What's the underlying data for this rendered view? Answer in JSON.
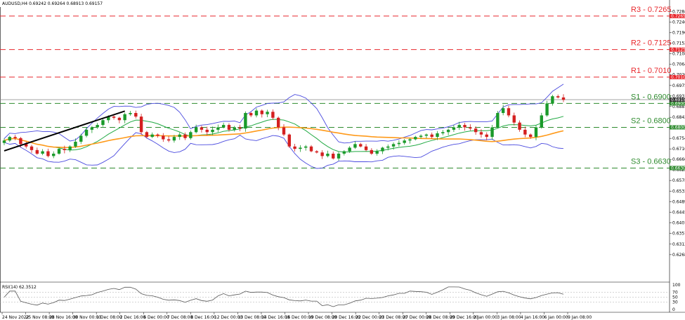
{
  "header": {
    "symbol_ohlc": "AUDUSD,H4  0.69242 0.69264 0.68913 0.69157"
  },
  "rsi_label": "RSI(14) 62.3512",
  "colors": {
    "resistance": "#e8282d",
    "support": "#2e8b2e",
    "bollinger": "#4a4adf",
    "ma_fast": "#22aa44",
    "ma_slow": "#ff9a1a",
    "candle_up": "#1a9a2a",
    "candle_down": "#d42020",
    "trendline": "#000000",
    "rsi_line": "#555555"
  },
  "chart_data": [
    {
      "type": "candlestick",
      "title": "AUDUSD,H4",
      "ylim": [
        0.6165,
        0.7297
      ],
      "y_ticks": [
        "0.72840",
        "0.72400",
        "0.71960",
        "0.71520",
        "0.71080",
        "0.70640",
        "0.70200",
        "0.69750",
        "0.69310",
        "0.68870",
        "0.68420",
        "0.67980",
        "0.67540",
        "0.67100",
        "0.66660",
        "0.66220",
        "0.65780",
        "0.65330",
        "0.64890",
        "0.64450",
        "0.64010",
        "0.63570",
        "0.63120",
        "0.62680"
      ],
      "x_ticks": [
        "24 Nov 2022",
        "25 Nov 08:00",
        "28 Nov 16:00",
        "30 Nov 00:00",
        "1 Dec 08:00",
        "2 Dec 16:00",
        "6 Dec 00:00",
        "7 Dec 08:00",
        "8 Dec 16:00",
        "12 Dec 00:00",
        "13 Dec 08:00",
        "14 Dec 16:00",
        "16 Dec 00:00",
        "19 Dec 08:00",
        "20 Dec 16:00",
        "22 Dec 00:00",
        "23 Dec 08:00",
        "27 Dec 00:00",
        "28 Dec 08:00",
        "29 Dec 16:00",
        "2 Jan 00:00",
        "3 Jan 08:00",
        "4 Jan 16:00",
        "6 Jan 00:00",
        "9 Jan 08:00"
      ],
      "levels": [
        {
          "label": "R3 - 0.7265",
          "value": 0.7265,
          "tag": "0.72650",
          "kind": "resistance"
        },
        {
          "label": "R2 - 0.7125",
          "value": 0.7125,
          "tag": "0.71250",
          "kind": "resistance"
        },
        {
          "label": "R1 - 0.7010",
          "value": 0.701,
          "tag": "0.70100",
          "kind": "resistance"
        },
        {
          "label": "S1 - 0.6900",
          "value": 0.69,
          "tag": "0.69000",
          "kind": "support"
        },
        {
          "label": "S2 - 0.6800",
          "value": 0.68,
          "tag": "0.68000",
          "kind": "support"
        },
        {
          "label": "S3 - 0.6630",
          "value": 0.663,
          "tag": "0.66300",
          "kind": "support"
        }
      ],
      "current_price": {
        "value": 0.69157,
        "tag": "0.69157"
      },
      "close_series": [
        0.6745,
        0.676,
        0.6755,
        0.673,
        0.672,
        0.6705,
        0.669,
        0.67,
        0.668,
        0.669,
        0.671,
        0.6705,
        0.672,
        0.674,
        0.6765,
        0.679,
        0.68,
        0.681,
        0.683,
        0.6845,
        0.684,
        0.683,
        0.6855,
        0.686,
        0.6845,
        0.678,
        0.676,
        0.677,
        0.6765,
        0.675,
        0.6745,
        0.676,
        0.677,
        0.6755,
        0.678,
        0.68,
        0.679,
        0.678,
        0.679,
        0.68,
        0.681,
        0.679,
        0.68,
        0.6795,
        0.686,
        0.685,
        0.687,
        0.6855,
        0.6865,
        0.684,
        0.68,
        0.677,
        0.672,
        0.671,
        0.6715,
        0.672,
        0.67,
        0.6695,
        0.668,
        0.669,
        0.667,
        0.669,
        0.67,
        0.6715,
        0.673,
        0.672,
        0.6705,
        0.669,
        0.67,
        0.6715,
        0.672,
        0.673,
        0.6735,
        0.6745,
        0.675,
        0.676,
        0.6765,
        0.677,
        0.676,
        0.6775,
        0.678,
        0.679,
        0.68,
        0.681,
        0.68,
        0.6795,
        0.678,
        0.677,
        0.676,
        0.68,
        0.686,
        0.688,
        0.685,
        0.682,
        0.679,
        0.677,
        0.676,
        0.68,
        0.685,
        0.69,
        0.693,
        0.6925,
        0.6915
      ],
      "rsi": {
        "label": "RSI(14)",
        "value": 62.3512,
        "ylim": [
          0,
          100
        ],
        "levels": [
          70,
          50,
          30
        ],
        "tick_labels": [
          "100",
          "70",
          "50",
          "30",
          "0"
        ]
      }
    }
  ]
}
